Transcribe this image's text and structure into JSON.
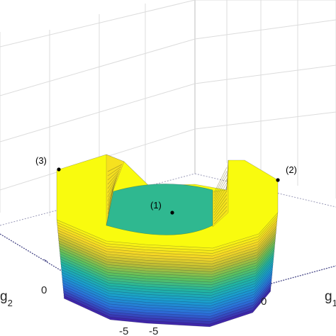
{
  "chart_data": {
    "type": "surface",
    "title": "",
    "axes": {
      "x": {
        "label_base": "g",
        "label_sub": "1",
        "ticks": [
          "-5",
          "0"
        ]
      },
      "y": {
        "label_base": "g",
        "label_sub": "2",
        "ticks": [
          "-5",
          "0"
        ]
      },
      "z": {
        "label": "",
        "ticks": []
      }
    },
    "grid": true,
    "colormap": "parula",
    "colormap_stops": [
      "#3e26a8",
      "#2c6fd9",
      "#1a9cd0",
      "#21b5a3",
      "#5ec15e",
      "#b9bc36",
      "#f5d626",
      "#f9fb0e"
    ],
    "top_face_color": "#2fb890",
    "annotations": [
      {
        "label": "(1)"
      },
      {
        "label": "(2)"
      },
      {
        "label": "(3)"
      }
    ]
  }
}
